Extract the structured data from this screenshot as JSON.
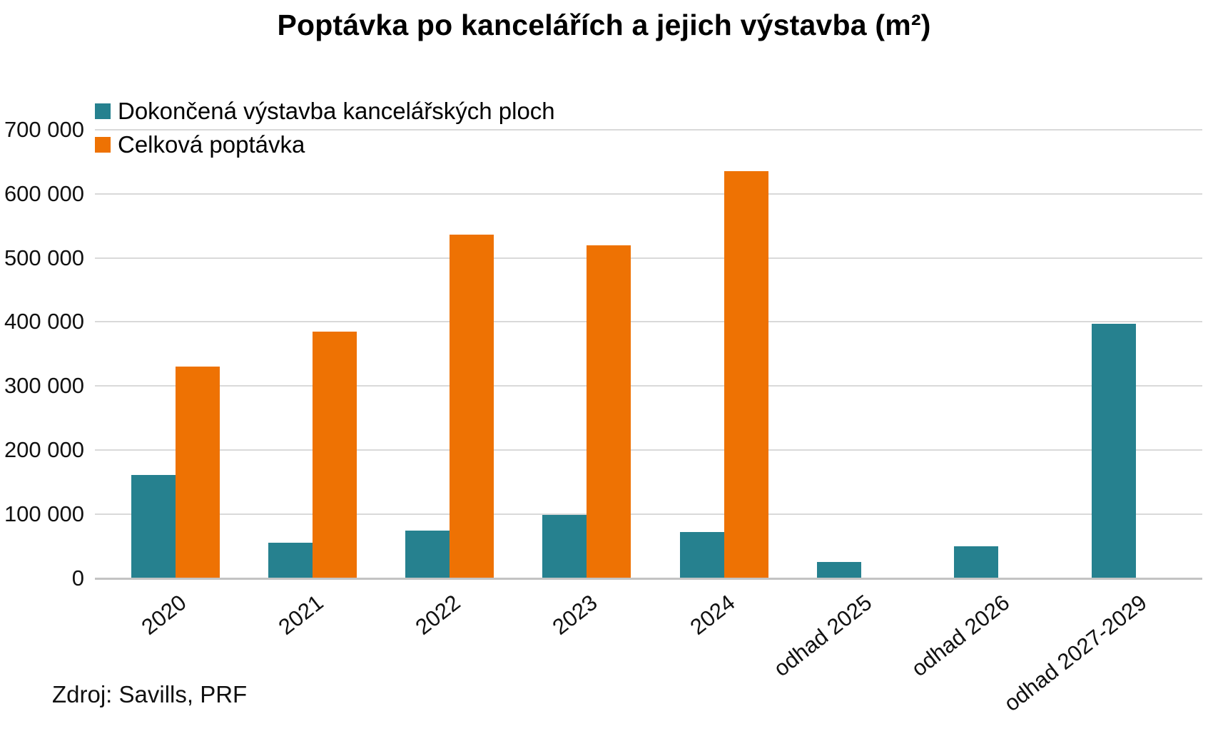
{
  "title": "Poptávka po kancelářích a jejich výstavba (m²)",
  "source": "Zdroj: Savills, PRF",
  "colors": {
    "construction_teal": "#26818F",
    "demand_orange": "#EE7203",
    "gridline": "#D9D9D9",
    "axis_line": "#C3C3C3",
    "text": "#000000"
  },
  "legend": [
    {
      "label": "Dokončená výstavba kancelářských ploch",
      "color": "#26818F"
    },
    {
      "label": "Celková poptávka",
      "color": "#EE7203"
    }
  ],
  "chart_data": {
    "type": "bar",
    "title": "Poptávka po kancelářích a jejich výstavba (m²)",
    "categories": [
      "2020",
      "2021",
      "2022",
      "2023",
      "2024",
      "odhad 2025",
      "odhad 2026",
      "odhad 2027-2029"
    ],
    "series": [
      {
        "name": "Dokončená výstavba kancelářských ploch",
        "color": "#26818F",
        "values": [
          161000,
          55000,
          74000,
          98000,
          72000,
          25000,
          50000,
          397000
        ]
      },
      {
        "name": "Celková poptávka",
        "color": "#EE7203",
        "values": [
          330000,
          385000,
          536000,
          520000,
          635000,
          null,
          null,
          null
        ]
      }
    ],
    "xlabel": "",
    "ylabel": "",
    "ylim": [
      0,
      700000
    ],
    "ytick_step": 100000,
    "ytick_labels": [
      "0",
      "100 000",
      "200 000",
      "300 000",
      "400 000",
      "500 000",
      "600 000",
      "700 000"
    ],
    "grid": true,
    "legend_position": "top-left",
    "x_tick_rotation_deg": -38
  }
}
